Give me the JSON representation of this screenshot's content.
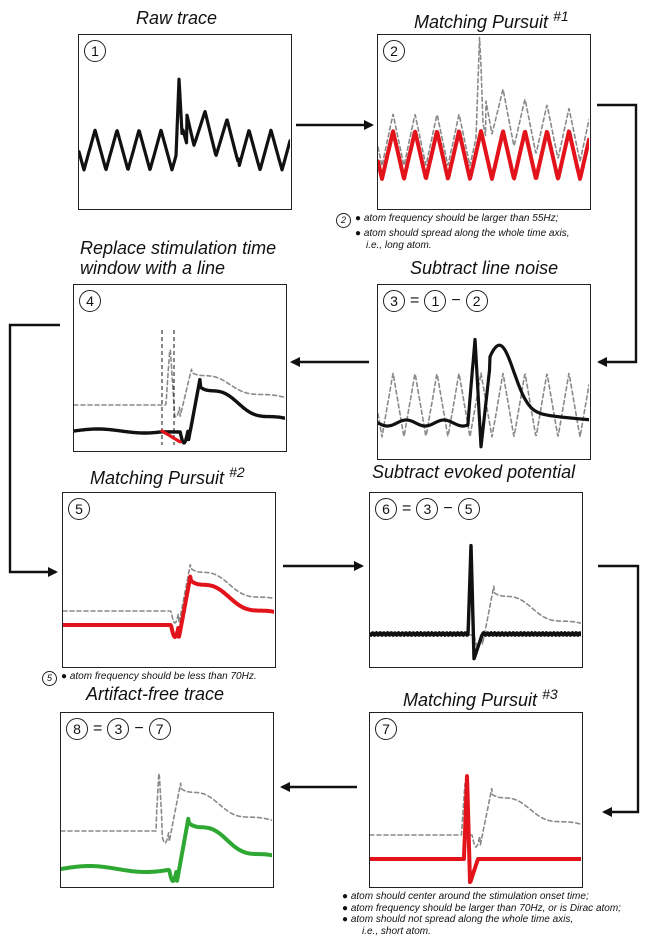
{
  "colors": {
    "raw": "#111111",
    "atom_red": "#e3131b",
    "residual_dashed": "#8a8a8a",
    "clean_green": "#2fa833"
  },
  "panels": [
    {
      "id": "p1",
      "title": "Raw trace",
      "title_sup": "",
      "badge": [
        "1"
      ]
    },
    {
      "id": "p2",
      "title": "Matching Pursuit ",
      "title_sup": "#1",
      "badge": [
        "2"
      ]
    },
    {
      "id": "p3",
      "title": "Subtract line noise",
      "title_sup": "",
      "badge": [
        "3",
        "=",
        "1",
        "−",
        "2"
      ]
    },
    {
      "id": "p4",
      "title": "Replace stimulation time window with a line",
      "title_sup": "",
      "badge": [
        "4"
      ]
    },
    {
      "id": "p5",
      "title": "Matching Pursuit ",
      "title_sup": "#2",
      "badge": [
        "5"
      ]
    },
    {
      "id": "p6",
      "title": "Subtract evoked potential",
      "title_sup": "",
      "badge": [
        "6",
        "=",
        "3",
        "−",
        "5"
      ]
    },
    {
      "id": "p7",
      "title": "Matching Pursuit ",
      "title_sup": "#3",
      "badge": [
        "7"
      ]
    },
    {
      "id": "p8",
      "title": "Artifact-free trace",
      "title_sup": "",
      "badge": [
        "8",
        "=",
        "3",
        "−",
        "7"
      ]
    }
  ],
  "notes": {
    "mp1": {
      "marker": "2",
      "lines": [
        "● atom frequency should be larger than 55Hz;",
        "● atom should spread along the whole time axis,",
        "i.e., long atom."
      ]
    },
    "mp2": {
      "marker": "5",
      "lines": [
        "● atom frequency should be less than 70Hz."
      ]
    },
    "mp3": {
      "lines": [
        "● atom should center around the stimulation onset time;",
        "● atom frequency should be larger than 70Hz, or is Dirac atom;",
        "● atom should not spread along the whole time axis,",
        "i.e., short atom."
      ]
    }
  }
}
